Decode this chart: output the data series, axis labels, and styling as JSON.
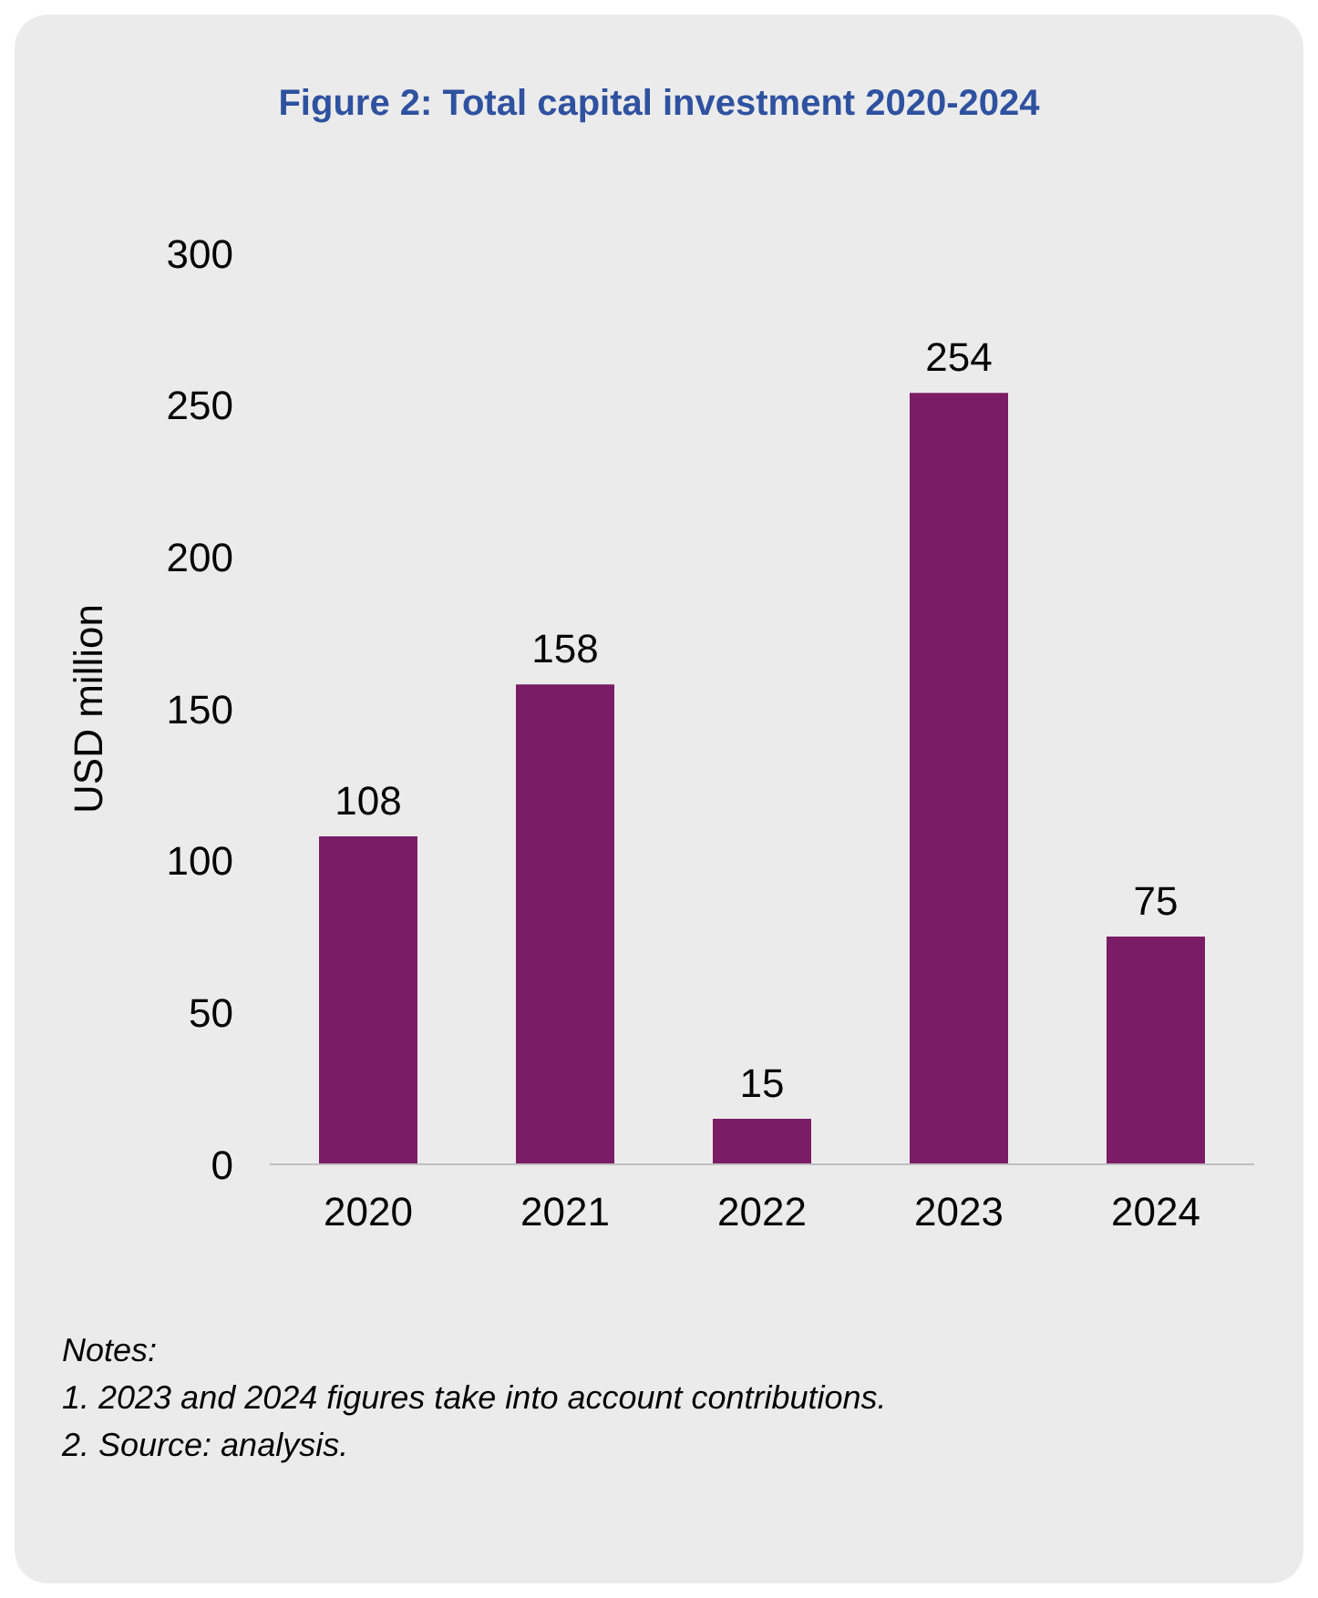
{
  "chart_data": {
    "type": "bar",
    "title": "Figure 2: Total capital investment 2020-2024",
    "ylabel": "USD million",
    "categories": [
      "2020",
      "2021",
      "2022",
      "2023",
      "2024"
    ],
    "values": [
      108,
      158,
      15,
      254,
      75
    ],
    "color": "#7b1c66",
    "ylim": [
      0,
      300
    ],
    "yticks": [
      0,
      50,
      100,
      150,
      200,
      250,
      300
    ],
    "grid": false,
    "data_labels": true,
    "annotations": [
      "Notes:",
      "1. 2023 and 2024 figures take into account contributions.",
      "2. Source: analysis."
    ]
  }
}
